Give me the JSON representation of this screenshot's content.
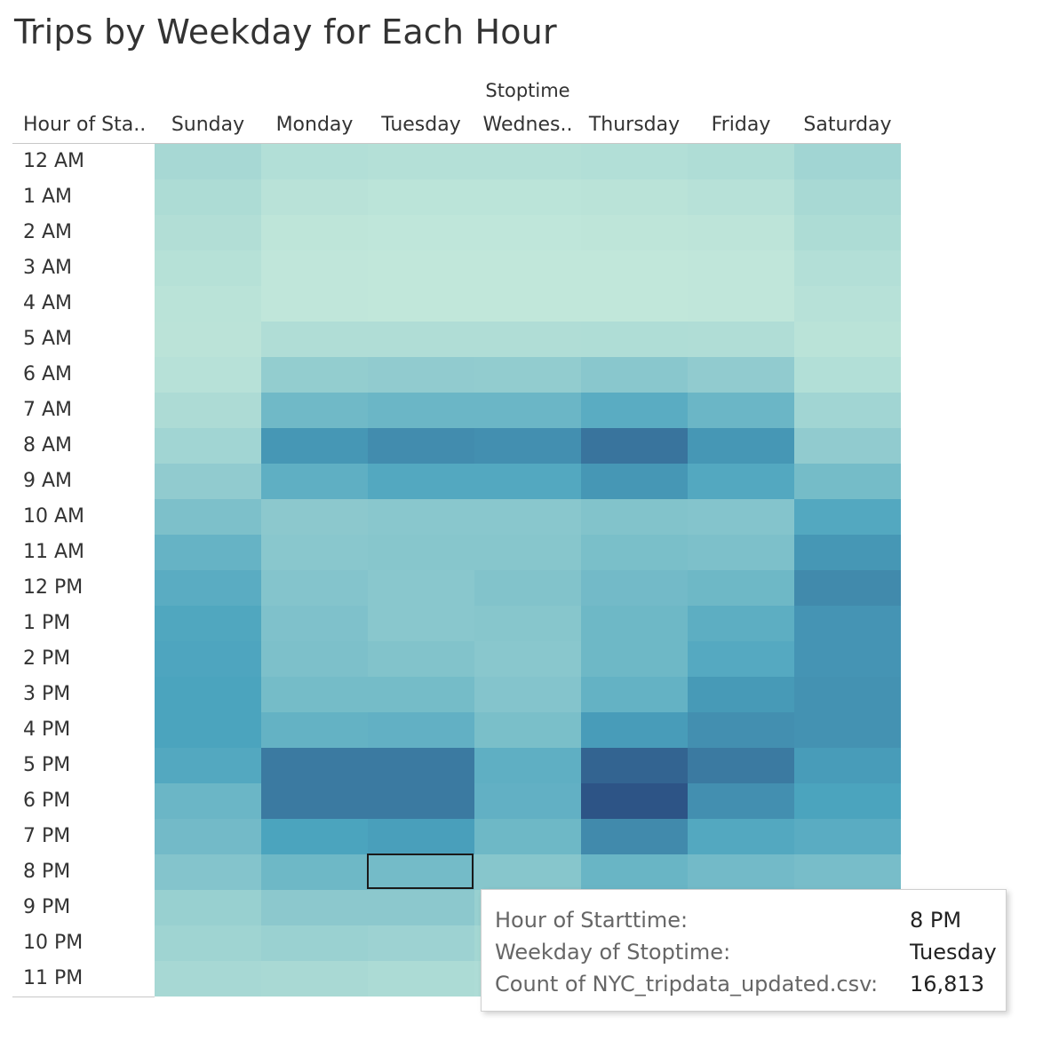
{
  "chart_data": {
    "type": "heatmap",
    "title": "Trips by Weekday for Each Hour",
    "column_group_label": "Stoptime",
    "row_header_label": "Hour of Sta..",
    "columns": [
      "Sunday",
      "Monday",
      "Tuesday",
      "Wednes..",
      "Thursday",
      "Friday",
      "Saturday"
    ],
    "rows": [
      "12 AM",
      "1 AM",
      "2 AM",
      "3 AM",
      "4 AM",
      "5 AM",
      "6 AM",
      "7 AM",
      "8 AM",
      "9 AM",
      "10 AM",
      "11 AM",
      "12 PM",
      "1 PM",
      "2 PM",
      "3 PM",
      "4 PM",
      "5 PM",
      "6 PM",
      "7 PM",
      "8 PM",
      "9 PM",
      "10 PM",
      "11 PM"
    ],
    "values": [
      [
        6500,
        4200,
        3800,
        3800,
        4200,
        4800,
        7600
      ],
      [
        5200,
        2800,
        2400,
        2400,
        2600,
        3200,
        6300
      ],
      [
        4300,
        1900,
        1600,
        1600,
        1800,
        2100,
        5200
      ],
      [
        3400,
        1400,
        1200,
        1200,
        1300,
        1500,
        4000
      ],
      [
        2700,
        1400,
        1200,
        1200,
        1300,
        1500,
        3200
      ],
      [
        2500,
        4600,
        4700,
        4700,
        4800,
        4600,
        2600
      ],
      [
        3200,
        10500,
        11000,
        10800,
        12500,
        11000,
        4200
      ],
      [
        5300,
        17500,
        18600,
        18600,
        22000,
        18600,
        7600
      ],
      [
        7600,
        27500,
        29500,
        29000,
        34000,
        27500,
        11000
      ],
      [
        11000,
        21000,
        23500,
        23500,
        27500,
        23500,
        16500
      ],
      [
        15000,
        12000,
        12500,
        12500,
        14000,
        13500,
        23500
      ],
      [
        19500,
        12500,
        13000,
        13000,
        15500,
        15000,
        27500
      ],
      [
        22000,
        13500,
        12500,
        14000,
        17000,
        18000,
        30000
      ],
      [
        24000,
        14500,
        12500,
        13000,
        18000,
        21500,
        28000
      ],
      [
        24500,
        15000,
        14000,
        12500,
        18000,
        23000,
        28000
      ],
      [
        25000,
        16500,
        16500,
        13500,
        20000,
        27000,
        28500
      ],
      [
        25000,
        20000,
        20500,
        15500,
        26500,
        29000,
        28500
      ],
      [
        23500,
        33000,
        33000,
        21000,
        37000,
        33000,
        26500
      ],
      [
        18500,
        33000,
        33000,
        20500,
        40000,
        29000,
        25000
      ],
      [
        17000,
        25000,
        26000,
        18000,
        30000,
        23500,
        22000
      ],
      [
        13500,
        18000,
        16813,
        13000,
        19000,
        17000,
        16000
      ],
      [
        9500,
        12000,
        12000,
        9500,
        13000,
        12000,
        10500
      ],
      [
        8000,
        9000,
        8500,
        7000,
        9000,
        8500,
        8000
      ],
      [
        6500,
        6000,
        5500,
        5000,
        6000,
        6000,
        6000
      ]
    ],
    "selected": {
      "row": "8 PM",
      "column": "Tuesday"
    }
  },
  "tooltip": {
    "label_hour": "Hour of Starttime:",
    "value_hour": "8 PM",
    "label_weekday": "Weekday of Stoptime:",
    "value_weekday": "Tuesday",
    "label_count": "Count of NYC_tripdata_updated.csv:",
    "value_count": "16,813"
  },
  "colors": {
    "low": "#c1e7da",
    "mid": "#4aa3be",
    "high": "#2d5486"
  }
}
